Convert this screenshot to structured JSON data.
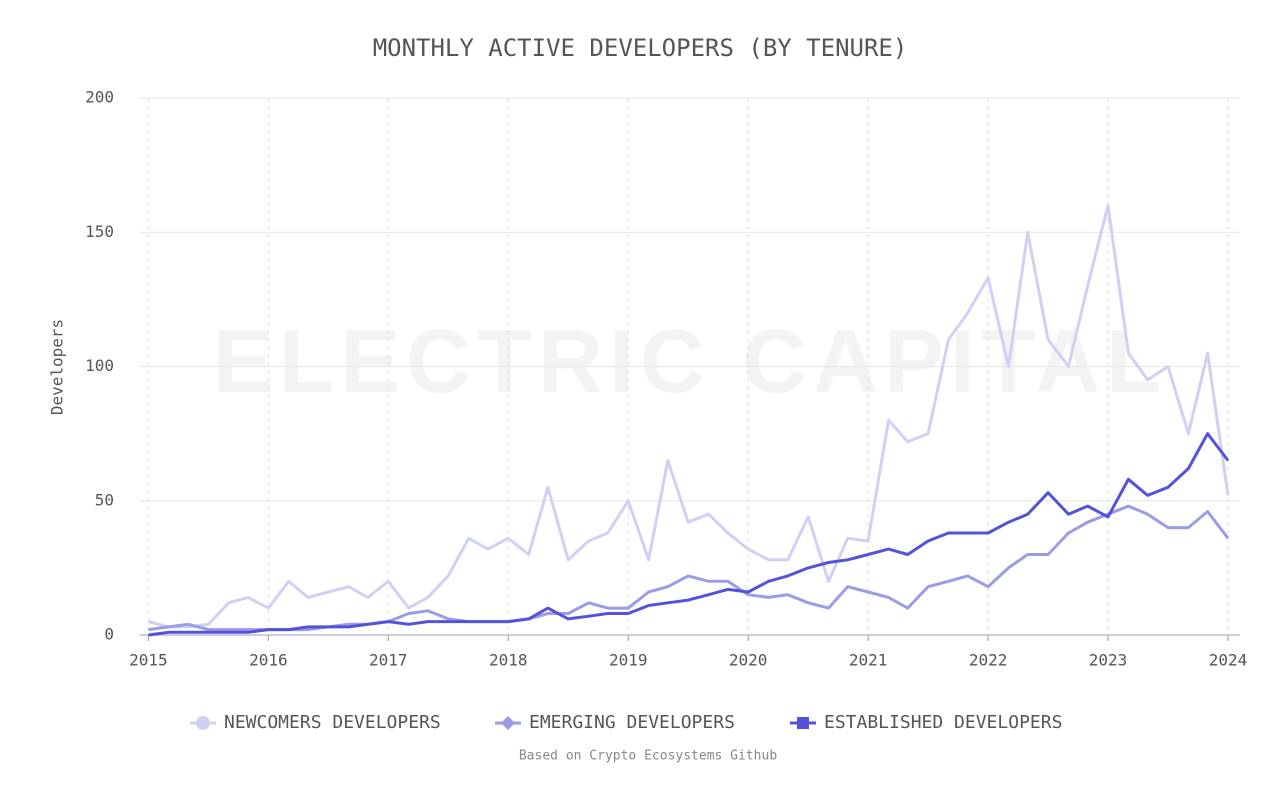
{
  "chart_data": {
    "type": "line",
    "title": "MONTHLY ACTIVE DEVELOPERS (BY TENURE)",
    "y_label": "Developers",
    "watermark": "ELECTRIC CAPITAL",
    "note": "Based on Crypto Ecosystems Github",
    "x": [
      2015,
      2015.17,
      2015.33,
      2015.5,
      2015.67,
      2015.83,
      2016,
      2016.17,
      2016.33,
      2016.5,
      2016.67,
      2016.83,
      2017,
      2017.17,
      2017.33,
      2017.5,
      2017.67,
      2017.83,
      2018,
      2018.17,
      2018.33,
      2018.5,
      2018.67,
      2018.83,
      2019,
      2019.17,
      2019.33,
      2019.5,
      2019.67,
      2019.83,
      2020,
      2020.17,
      2020.33,
      2020.5,
      2020.67,
      2020.83,
      2021,
      2021.17,
      2021.33,
      2021.5,
      2021.67,
      2021.83,
      2022,
      2022.17,
      2022.33,
      2022.5,
      2022.67,
      2022.83,
      2023,
      2023.17,
      2023.33,
      2023.5,
      2023.67,
      2023.83,
      2024
    ],
    "series": [
      {
        "name": "NEWCOMERS DEVELOPERS",
        "color": "#d0d0f5",
        "marker": "circle",
        "values": [
          5,
          3,
          3,
          4,
          12,
          14,
          10,
          20,
          14,
          16,
          18,
          14,
          20,
          10,
          14,
          22,
          36,
          32,
          36,
          30,
          55,
          28,
          35,
          38,
          50,
          28,
          65,
          42,
          45,
          38,
          32,
          28,
          28,
          44,
          20,
          36,
          35,
          80,
          72,
          75,
          110,
          120,
          133,
          100,
          150,
          110,
          100,
          130,
          160,
          105,
          95,
          100,
          75,
          105,
          52
        ]
      },
      {
        "name": "EMERGING DEVELOPERS",
        "color": "#9b9be8",
        "marker": "diamond",
        "values": [
          2,
          3,
          4,
          2,
          2,
          2,
          2,
          2,
          2,
          3,
          4,
          4,
          5,
          8,
          9,
          6,
          5,
          5,
          5,
          6,
          8,
          8,
          12,
          10,
          10,
          16,
          18,
          22,
          20,
          20,
          15,
          14,
          15,
          12,
          10,
          18,
          16,
          14,
          10,
          18,
          20,
          22,
          18,
          25,
          30,
          30,
          38,
          42,
          45,
          48,
          45,
          40,
          40,
          46,
          36
        ]
      },
      {
        "name": "ESTABLISHED DEVELOPERS",
        "color": "#5353d9",
        "marker": "square",
        "values": [
          0,
          1,
          1,
          1,
          1,
          1,
          2,
          2,
          3,
          3,
          3,
          4,
          5,
          4,
          5,
          5,
          5,
          5,
          5,
          6,
          10,
          6,
          7,
          8,
          8,
          11,
          12,
          13,
          15,
          17,
          16,
          20,
          22,
          25,
          27,
          28,
          30,
          32,
          30,
          35,
          38,
          38,
          38,
          42,
          45,
          53,
          45,
          48,
          44,
          58,
          52,
          55,
          62,
          75,
          65
        ]
      }
    ],
    "xlim": [
      2014.93,
      2024.1
    ],
    "xticks": [
      2015,
      2016,
      2017,
      2018,
      2019,
      2020,
      2021,
      2022,
      2023,
      2024
    ],
    "ylim": [
      0,
      200
    ],
    "yticks": [
      0,
      50,
      100,
      150,
      200
    ],
    "grid": true,
    "legend": "bottom"
  }
}
